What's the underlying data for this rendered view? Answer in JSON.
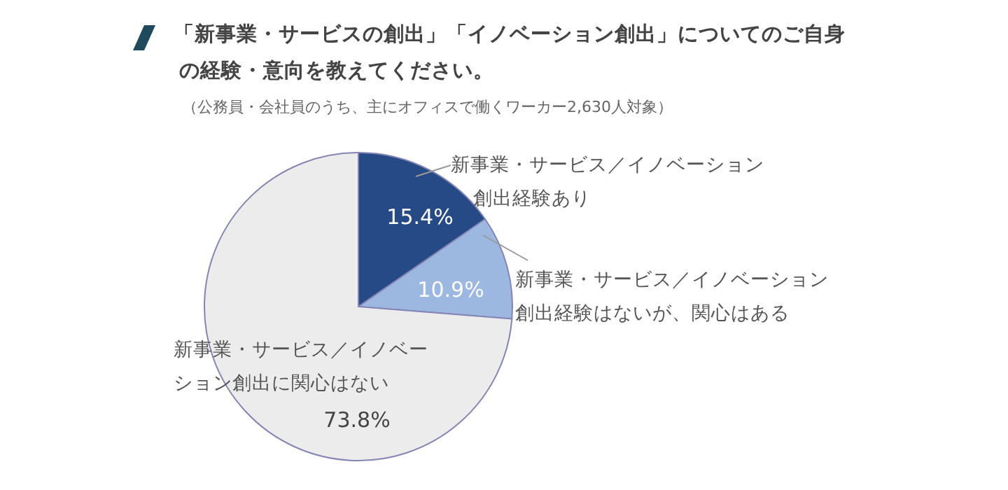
{
  "chart_data": {
    "type": "pie",
    "title": "「新事業・サービスの創出」「イノベーション創出」についてのご自身の経験・意向を教えてください。",
    "subtitle": "（公務員・会社員のうち、主にオフィスで働くワーカー2,630人対象）",
    "categories": [
      "新事業・サービス／イノベーション創出経験あり",
      "新事業・サービス／イノベーション創出経験はないが、関心はある",
      "新事業・サービス／イノベーション創出に関心はない"
    ],
    "values": [
      15.4,
      10.9,
      73.8
    ],
    "value_labels": [
      "15.4%",
      "10.9%",
      "73.8%"
    ],
    "colors": [
      "#264a86",
      "#9db8e0",
      "#ececec"
    ]
  }
}
